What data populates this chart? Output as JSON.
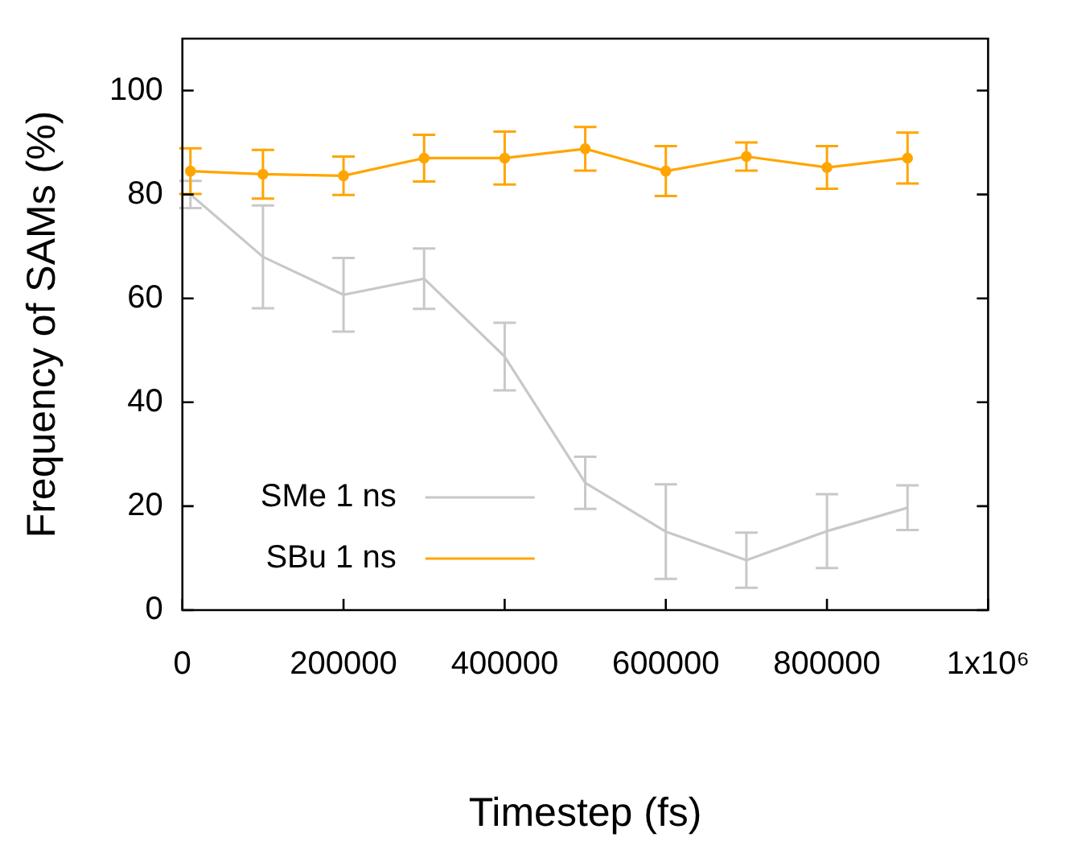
{
  "chart_data": {
    "type": "line",
    "xlabel": "Timestep (fs)",
    "ylabel": "Frequency of SAMs (%)",
    "xlim": [
      0,
      1000000
    ],
    "xticks": [
      0,
      200000,
      400000,
      600000,
      800000,
      {
        "value": 1000000,
        "label": "1x10⁶"
      }
    ],
    "ylim": [
      0,
      110
    ],
    "yticks": [
      0,
      20,
      40,
      60,
      80,
      100
    ],
    "grid": false,
    "legend": "bottom left",
    "series": [
      {
        "name": "SMe 1 ns",
        "color": "#c8c8c8",
        "marker": "none",
        "x": [
          10000,
          100000,
          200000,
          300000,
          400000,
          500000,
          600000,
          700000,
          800000,
          900000
        ],
        "values": [
          80,
          68,
          60.7,
          63.8,
          48.8,
          24.5,
          15.1,
          9.6,
          15.2,
          19.7
        ],
        "errors": [
          2.6,
          9.9,
          7.1,
          5.8,
          6.5,
          5,
          9.1,
          5.3,
          7.1,
          4.3
        ]
      },
      {
        "name": "SBu 1 ns",
        "color": "#ffa500",
        "marker": "circle",
        "x": [
          10000,
          100000,
          200000,
          300000,
          400000,
          500000,
          600000,
          700000,
          800000,
          900000
        ],
        "values": [
          84.5,
          83.9,
          83.6,
          87,
          87,
          88.8,
          84.5,
          87.3,
          85.2,
          87
        ],
        "errors": [
          4.4,
          4.7,
          3.7,
          4.5,
          5.1,
          4.2,
          4.8,
          2.7,
          4.1,
          4.9
        ]
      }
    ]
  }
}
